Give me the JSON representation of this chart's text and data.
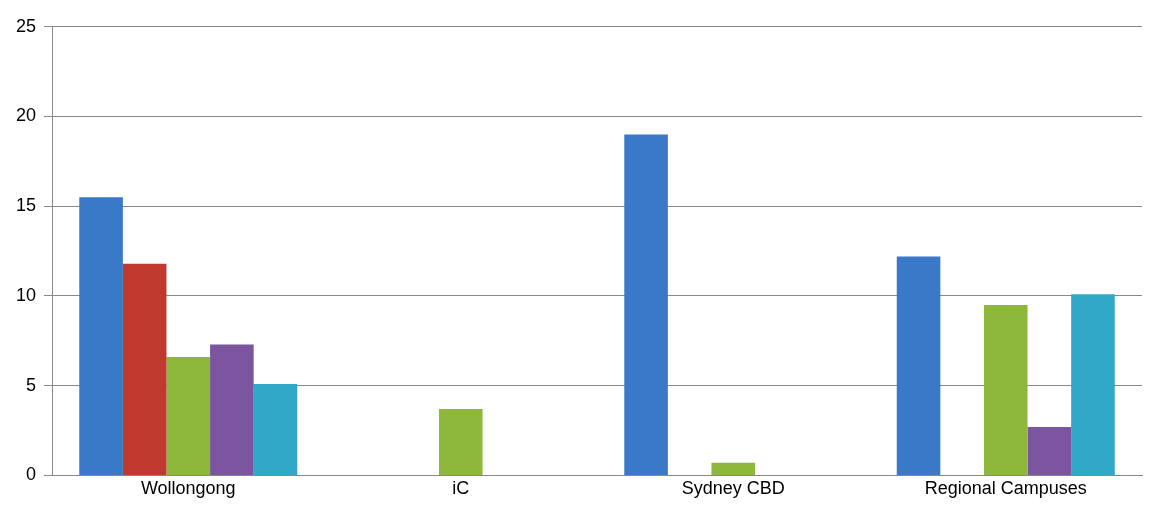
{
  "chart_data": {
    "type": "bar",
    "categories": [
      "Wollongong",
      "iC",
      "Sydney CBD",
      "Regional Campuses"
    ],
    "series": [
      {
        "color": "#3a78c8",
        "values": [
          15.5,
          null,
          19.0,
          12.2
        ]
      },
      {
        "color": "#c0392f",
        "values": [
          11.8,
          null,
          null,
          null
        ]
      },
      {
        "color": "#8db83c",
        "values": [
          6.6,
          3.7,
          0.7,
          9.5
        ]
      },
      {
        "color": "#7b559f",
        "values": [
          7.3,
          null,
          null,
          2.7
        ]
      },
      {
        "color": "#31a8c8",
        "values": [
          5.1,
          null,
          null,
          10.1
        ]
      }
    ],
    "ylim": [
      0,
      25
    ],
    "yticks": [
      0,
      5,
      10,
      15,
      20,
      25
    ],
    "grid": "y",
    "legend": false
  }
}
